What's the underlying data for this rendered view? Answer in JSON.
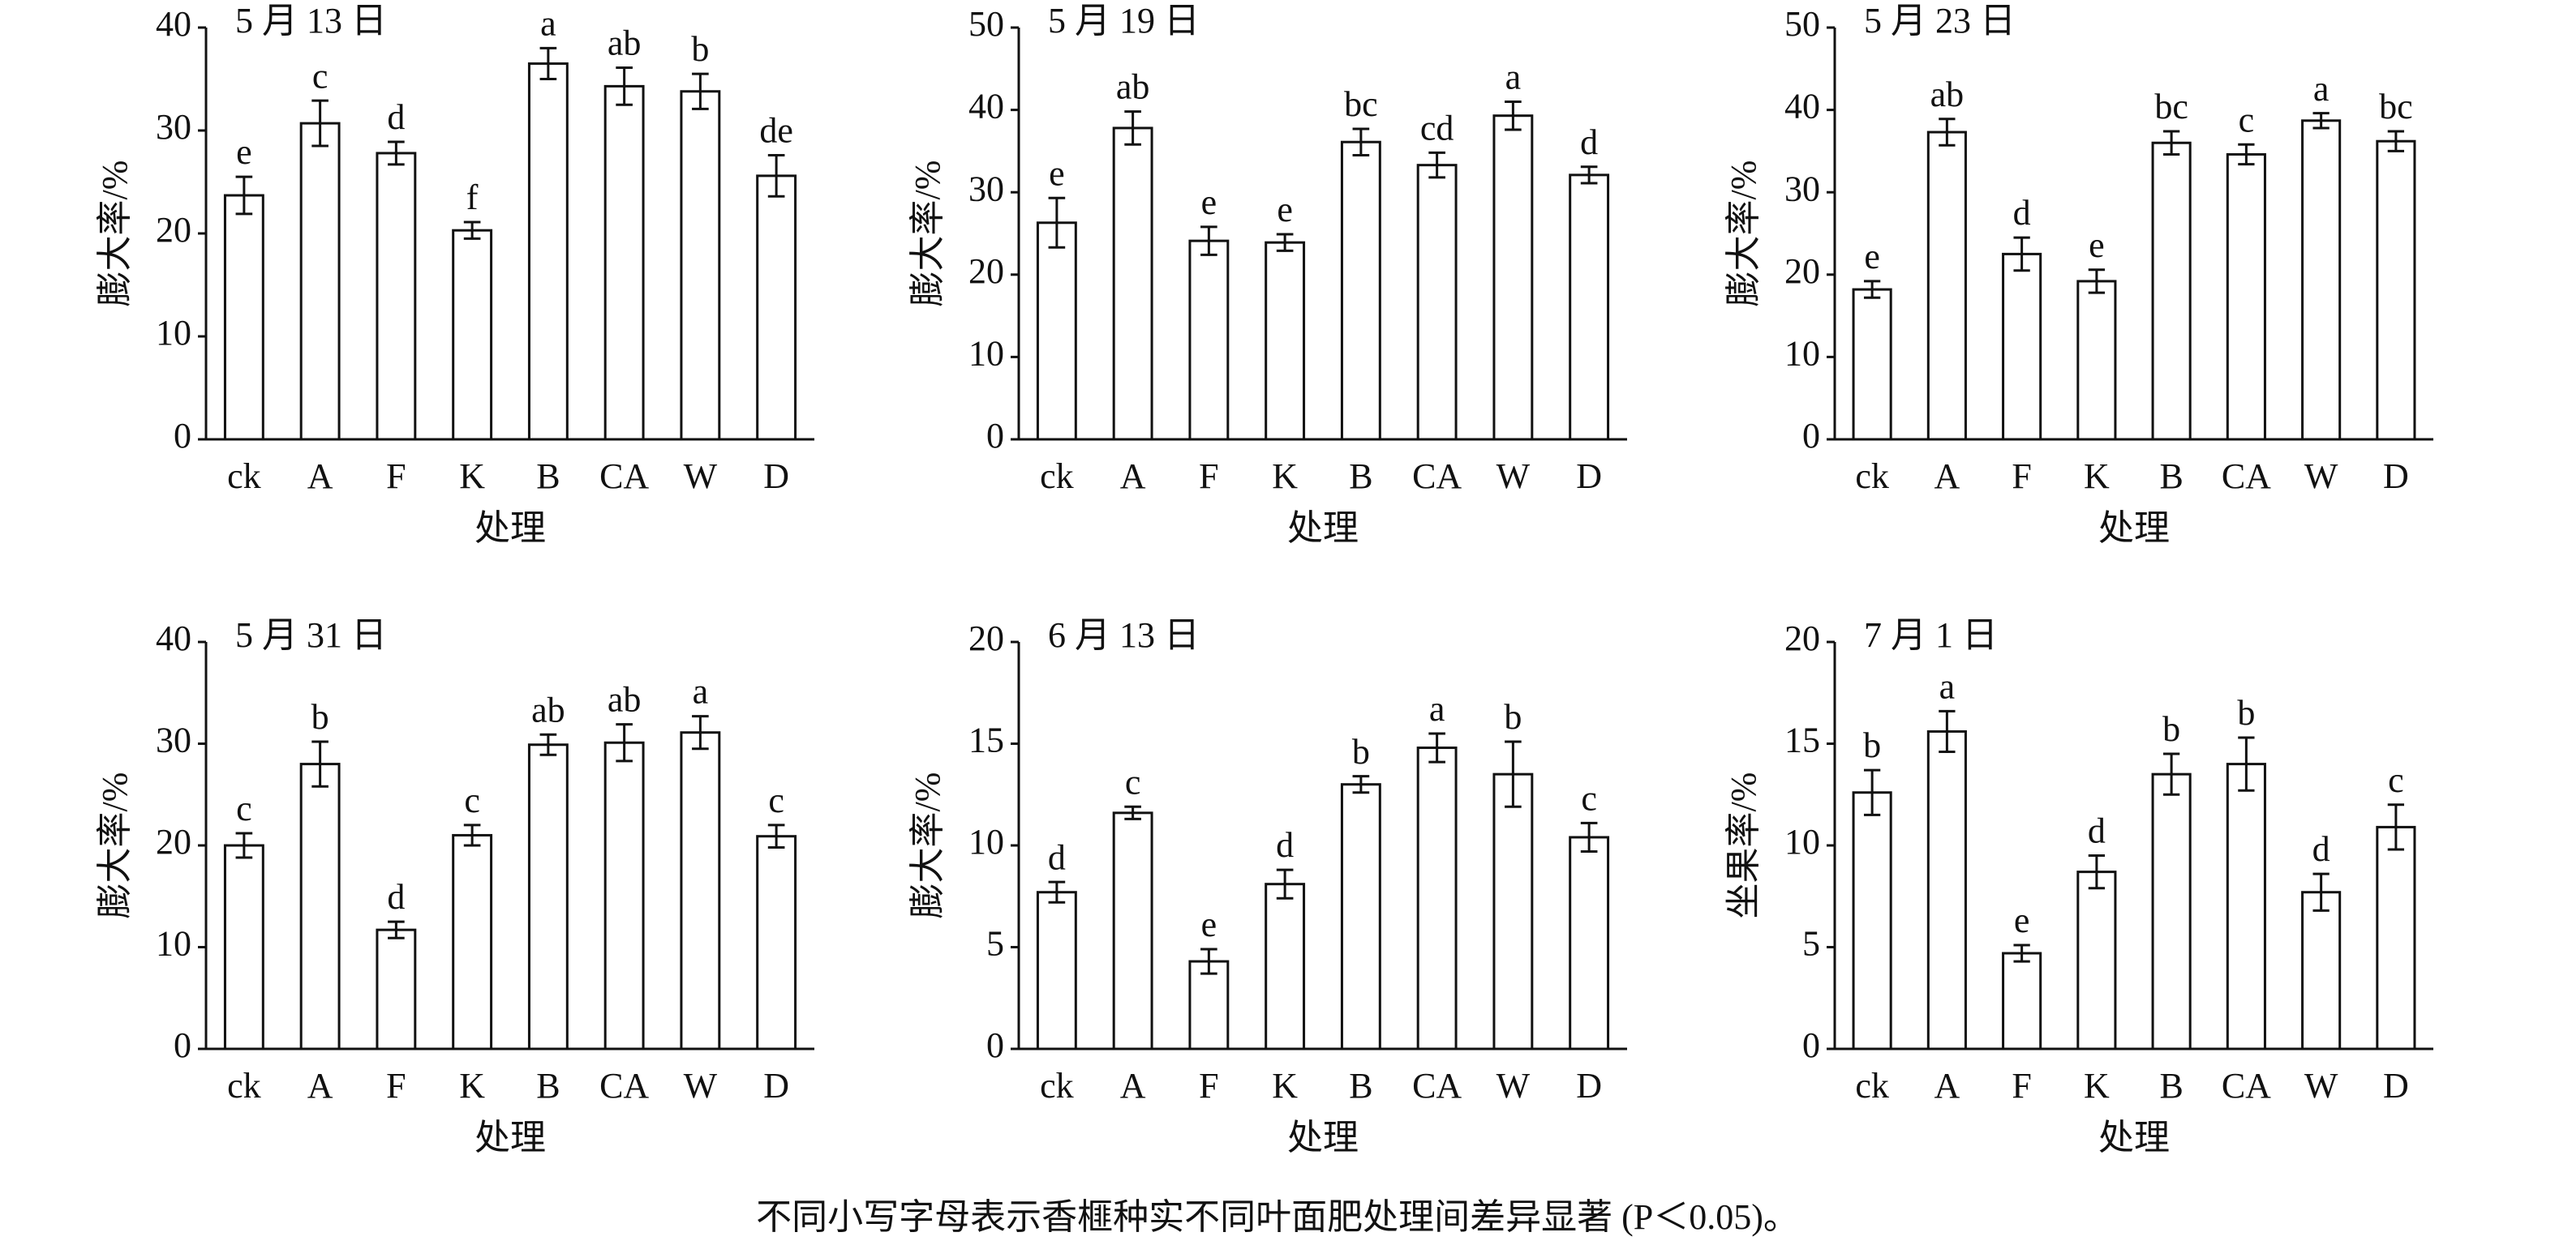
{
  "chart_data": [
    {
      "type": "bar",
      "title": "5 月 13 日",
      "ylabel": "膨大率/%",
      "xlabel": "处理",
      "categories": [
        "ck",
        "A",
        "F",
        "K",
        "B",
        "CA",
        "W",
        "D"
      ],
      "values": [
        23.7,
        30.7,
        27.8,
        20.3,
        36.5,
        34.3,
        33.8,
        25.6
      ],
      "errors": [
        1.8,
        2.2,
        1.1,
        0.8,
        1.5,
        1.8,
        1.7,
        2.0
      ],
      "annotations": [
        "e",
        "c",
        "d",
        "f",
        "a",
        "ab",
        "b",
        "de"
      ],
      "ylim": [
        0,
        40
      ],
      "yticks": [
        0,
        10,
        20,
        30,
        40
      ],
      "color": "#ffffff"
    },
    {
      "type": "bar",
      "title": "5 月 19 日",
      "ylabel": "膨大率/%",
      "xlabel": "处理",
      "categories": [
        "ck",
        "A",
        "F",
        "K",
        "B",
        "CA",
        "W",
        "D"
      ],
      "values": [
        26.3,
        37.8,
        24.1,
        23.9,
        36.1,
        33.3,
        39.3,
        32.1
      ],
      "errors": [
        3.0,
        2.0,
        1.7,
        1.0,
        1.6,
        1.5,
        1.7,
        1.0
      ],
      "annotations": [
        "e",
        "ab",
        "e",
        "e",
        "bc",
        "cd",
        "a",
        "d"
      ],
      "ylim": [
        0,
        50
      ],
      "yticks": [
        0,
        10,
        20,
        30,
        40,
        50
      ],
      "color": "#ffffff"
    },
    {
      "type": "bar",
      "title": "5 月 23 日",
      "ylabel": "膨大率/%",
      "xlabel": "处理",
      "categories": [
        "ck",
        "A",
        "F",
        "K",
        "B",
        "CA",
        "W",
        "D"
      ],
      "values": [
        18.2,
        37.3,
        22.5,
        19.2,
        36.0,
        34.6,
        38.7,
        36.2
      ],
      "errors": [
        1.0,
        1.6,
        2.0,
        1.4,
        1.4,
        1.2,
        0.9,
        1.2
      ],
      "annotations": [
        "e",
        "ab",
        "d",
        "e",
        "bc",
        "c",
        "a",
        "bc"
      ],
      "ylim": [
        0,
        50
      ],
      "yticks": [
        0,
        10,
        20,
        30,
        40,
        50
      ],
      "color": "#ffffff"
    },
    {
      "type": "bar",
      "title": "5 月 31 日",
      "ylabel": "膨大率/%",
      "xlabel": "处理",
      "categories": [
        "ck",
        "A",
        "F",
        "K",
        "B",
        "CA",
        "W",
        "D"
      ],
      "values": [
        20.0,
        28.0,
        11.7,
        21.0,
        29.9,
        30.1,
        31.1,
        20.9
      ],
      "errors": [
        1.2,
        2.2,
        0.8,
        1.0,
        1.0,
        1.8,
        1.6,
        1.1
      ],
      "annotations": [
        "c",
        "b",
        "d",
        "c",
        "ab",
        "ab",
        "a",
        "c"
      ],
      "ylim": [
        0,
        40
      ],
      "yticks": [
        0,
        10,
        20,
        30,
        40
      ],
      "color": "#ffffff"
    },
    {
      "type": "bar",
      "title": "6 月 13 日",
      "ylabel": "膨大率/%",
      "xlabel": "处理",
      "categories": [
        "ck",
        "A",
        "F",
        "K",
        "B",
        "CA",
        "W",
        "D"
      ],
      "values": [
        7.7,
        11.6,
        4.3,
        8.1,
        13.0,
        14.8,
        13.5,
        10.4
      ],
      "errors": [
        0.5,
        0.3,
        0.6,
        0.7,
        0.4,
        0.7,
        1.6,
        0.7
      ],
      "annotations": [
        "d",
        "c",
        "e",
        "d",
        "b",
        "a",
        "b",
        "c"
      ],
      "ylim": [
        0,
        20
      ],
      "yticks": [
        0,
        5,
        10,
        15,
        20
      ],
      "color": "#ffffff"
    },
    {
      "type": "bar",
      "title": "7 月 1 日",
      "ylabel": "坐果率/%",
      "xlabel": "处理",
      "categories": [
        "ck",
        "A",
        "F",
        "K",
        "B",
        "CA",
        "W",
        "D"
      ],
      "values": [
        12.6,
        15.6,
        4.7,
        8.7,
        13.5,
        14.0,
        7.7,
        10.9
      ],
      "errors": [
        1.1,
        1.0,
        0.4,
        0.8,
        1.0,
        1.3,
        0.9,
        1.1
      ],
      "annotations": [
        "b",
        "a",
        "e",
        "d",
        "b",
        "b",
        "d",
        "c"
      ],
      "ylim": [
        0,
        20
      ],
      "yticks": [
        0,
        5,
        10,
        15,
        20
      ],
      "color": "#ffffff"
    }
  ],
  "caption": "不同小写字母表示香榧种实不同叶面肥处理间差异显著 (P＜0.05)。"
}
